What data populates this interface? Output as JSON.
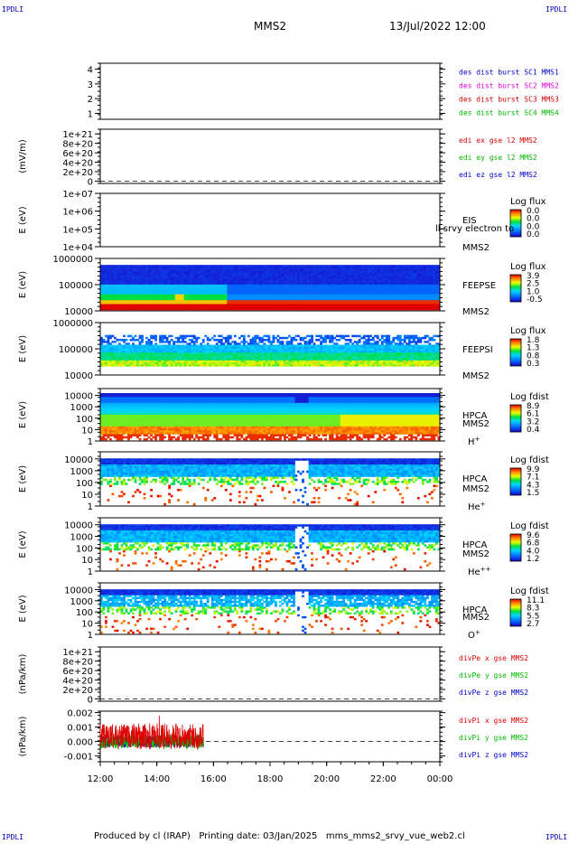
{
  "header": {
    "corner_tl": "IPDLI",
    "corner_tr": "IPDLI",
    "corner_bl": "IPDLI",
    "corner_br": "IPDLI",
    "title": "MMS2",
    "datetime": "13/Jul/2022 12:00"
  },
  "footer": {
    "text": "Produced by cl (IRAP)   Printing date: 03/Jan/2025   mms_mms2_srvy_vue_web2.cl"
  },
  "colors": {
    "mms1": "#0000cc",
    "mms2": "#dd00dd",
    "mms3": "#cc0000",
    "mms4": "#00bb00",
    "x_comp": "#dd0000",
    "y_comp": "#00bb00",
    "z_comp": "#0000cc"
  },
  "chart_data": [
    {
      "type": "line",
      "panel": "des-dist-burst",
      "x_ticks": [],
      "y_ticks": [
        "1",
        "2",
        "3",
        "4"
      ],
      "ylabel": "",
      "ylim": [
        0.6,
        4.4
      ],
      "legend": [
        {
          "text": "des dist burst SC1 MMS1",
          "color_key": "mms1"
        },
        {
          "text": "des dist burst SC2 MMS2",
          "color_key": "mms2"
        },
        {
          "text": "des dist burst SC3 MMS3",
          "color_key": "mms3"
        },
        {
          "text": "des dist burst SC4 MMS4",
          "color_key": "mms4"
        }
      ],
      "series": []
    },
    {
      "type": "line",
      "panel": "edi-e-gse",
      "y_ticks": [
        "0",
        "2e+20",
        "4e+20",
        "6e+20",
        "8e+20",
        "1e+21"
      ],
      "ylabel": "(mV/m)",
      "ylim": [
        -5e+19,
        1.1e+21
      ],
      "zero_line": true,
      "legend": [
        {
          "text": "edi ex gse l2 MMS2",
          "color_key": "x_comp"
        },
        {
          "text": "edi ey gse l2 MMS2",
          "color_key": "y_comp"
        },
        {
          "text": "edi ez gse l2 MMS2",
          "color_key": "z_comp"
        }
      ],
      "series": []
    },
    {
      "type": "heatmap",
      "panel": "eis",
      "y_ticks": [
        "1e+04",
        "1e+05",
        "1e+06",
        "1e+07"
      ],
      "ylabel": "E (eV)",
      "scale": "log",
      "ylim": [
        10000.0,
        10000000.0
      ],
      "instrument": "EIS",
      "spacecraft": "MMS2",
      "overlay_text": "ll srvy electron to",
      "colorbar_title": "Log flux",
      "colorbar_ticks": [
        "0.0",
        "0.0",
        "0.0",
        "0.0"
      ],
      "status": "empty"
    },
    {
      "type": "heatmap",
      "panel": "feeps-electron",
      "y_ticks": [
        "10000",
        "100000",
        "1000000"
      ],
      "ylabel": "E (eV)",
      "scale": "log",
      "ylim": [
        10000.0,
        1000000.0
      ],
      "instrument": "FEEPSE",
      "spacecraft": "MMS2",
      "colorbar_title": "Log flux",
      "colorbar_ticks": [
        "3.9",
        "2.5",
        "1.0",
        "-0.5"
      ],
      "data_end_hour": 24
    },
    {
      "type": "heatmap",
      "panel": "feeps-ion",
      "y_ticks": [
        "10000",
        "100000",
        "1000000"
      ],
      "ylabel": "E (eV)",
      "scale": "log",
      "ylim": [
        10000.0,
        1000000.0
      ],
      "instrument": "FEEPSI",
      "spacecraft": "MMS2",
      "colorbar_title": "Log flux",
      "colorbar_ticks": [
        "1.8",
        "1.3",
        "0.8",
        "0.3"
      ],
      "data_end_hour": 24
    },
    {
      "type": "heatmap",
      "panel": "hpca-h",
      "y_ticks": [
        "1",
        "10",
        "100",
        "1000",
        "10000"
      ],
      "ylabel": "E (eV)",
      "scale": "log",
      "ylim": [
        1,
        40000
      ],
      "instrument": "HPCA",
      "spacecraft": "MMS2",
      "species": "H",
      "species_sup": "+",
      "colorbar_title": "Log fdist",
      "colorbar_ticks": [
        "8.9",
        "6.1",
        "3.2",
        "0.4"
      ],
      "data_end_hour": 24
    },
    {
      "type": "heatmap",
      "panel": "hpca-he",
      "y_ticks": [
        "1",
        "10",
        "100",
        "1000",
        "10000"
      ],
      "ylabel": "E (eV)",
      "scale": "log",
      "ylim": [
        1,
        40000
      ],
      "instrument": "HPCA",
      "spacecraft": "MMS2",
      "species": "He",
      "species_sup": "+",
      "colorbar_title": "Log fdist",
      "colorbar_ticks": [
        "9.9",
        "7.1",
        "4.3",
        "1.5"
      ],
      "data_end_hour": 24
    },
    {
      "type": "heatmap",
      "panel": "hpca-hepp",
      "y_ticks": [
        "1",
        "10",
        "100",
        "1000",
        "10000"
      ],
      "ylabel": "E (eV)",
      "scale": "log",
      "ylim": [
        1,
        40000
      ],
      "instrument": "HPCA",
      "spacecraft": "MMS2",
      "species": "He",
      "species_sup": "++",
      "colorbar_title": "Log fdist",
      "colorbar_ticks": [
        "9.6",
        "6.8",
        "4.0",
        "1.2"
      ],
      "data_end_hour": 24
    },
    {
      "type": "heatmap",
      "panel": "hpca-o",
      "y_ticks": [
        "1",
        "10",
        "100",
        "1000",
        "10000"
      ],
      "ylabel": "E (eV)",
      "scale": "log",
      "ylim": [
        1,
        40000
      ],
      "instrument": "HPCA",
      "spacecraft": "MMS2",
      "species": "O",
      "species_sup": "+",
      "colorbar_title": "Log fdist",
      "colorbar_ticks": [
        "11.1",
        "8.3",
        "5.5",
        "2.7"
      ],
      "data_end_hour": 24
    },
    {
      "type": "line",
      "panel": "divpe",
      "y_ticks": [
        "0",
        "2e+20",
        "4e+20",
        "6e+20",
        "8e+20",
        "1e+21"
      ],
      "ylabel": "(nPa/km)",
      "ylim": [
        -5e+19,
        1.1e+21
      ],
      "zero_line": true,
      "legend": [
        {
          "text": "divPe x gse MMS2",
          "color_key": "x_comp"
        },
        {
          "text": "divPe y gse MMS2",
          "color_key": "y_comp"
        },
        {
          "text": "divPe z gse MMS2",
          "color_key": "z_comp"
        }
      ],
      "series": []
    },
    {
      "type": "line",
      "panel": "divpi",
      "y_ticks": [
        "-0.001",
        "0.000",
        "0.001",
        "0.002"
      ],
      "ylabel": "(nPa/km)",
      "ylim": [
        -0.0014,
        0.0021
      ],
      "zero_line": true,
      "legend": [
        {
          "text": "divPi x gse MMS2",
          "color_key": "x_comp"
        },
        {
          "text": "divPi y gse MMS2",
          "color_key": "y_comp"
        },
        {
          "text": "divPi z gse MMS2",
          "color_key": "z_comp"
        }
      ],
      "data_start_hour": 12.0,
      "data_end_hour": 15.65,
      "series": [
        {
          "component": "x",
          "color_key": "x_comp",
          "approx_range": [
            -0.0008,
            0.0018
          ]
        },
        {
          "component": "y",
          "color_key": "y_comp",
          "approx_range": [
            -0.0007,
            0.0007
          ]
        },
        {
          "component": "z",
          "color_key": "z_comp",
          "approx_range": [
            -0.0006,
            0.0006
          ]
        }
      ]
    }
  ],
  "x_axis": {
    "range_hours": [
      12,
      24
    ],
    "tick_labels": [
      "12:00",
      "14:00",
      "16:00",
      "18:00",
      "20:00",
      "22:00",
      "00:00"
    ]
  }
}
